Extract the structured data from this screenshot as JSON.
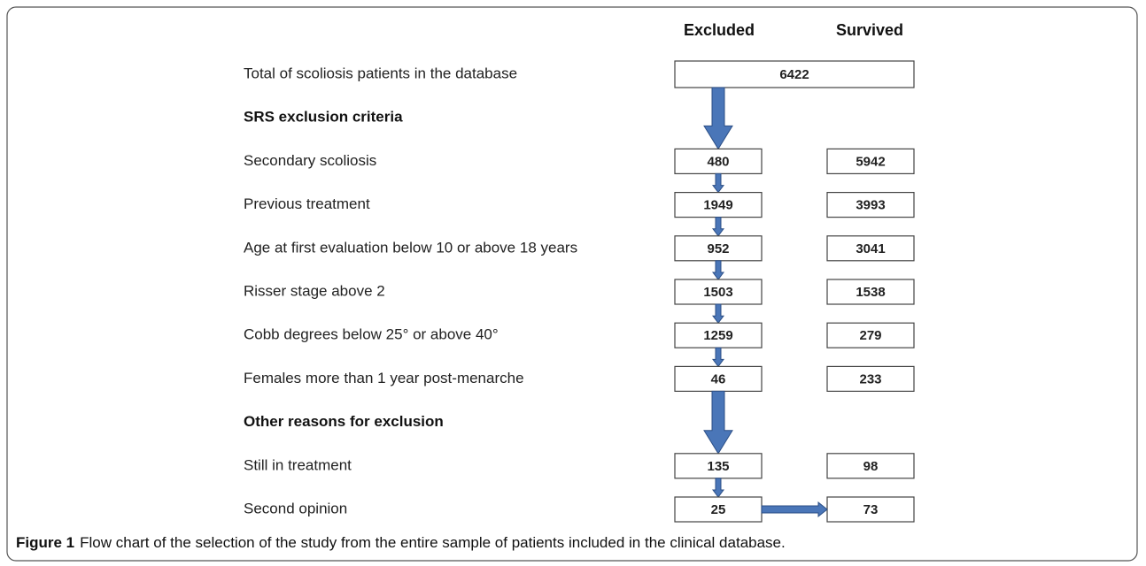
{
  "header": {
    "excluded": "Excluded",
    "survived": "Survived"
  },
  "total": {
    "label": "Total of scoliosis patients in the database",
    "value": 6422
  },
  "sections": [
    {
      "title": "SRS exclusion criteria",
      "rows": [
        {
          "label": "Secondary scoliosis",
          "excluded": 480,
          "survived": 5942
        },
        {
          "label": "Previous treatment",
          "excluded": 1949,
          "survived": 3993
        },
        {
          "label": "Age at first evaluation below 10 or above 18 years",
          "excluded": 952,
          "survived": 3041
        },
        {
          "label": "Risser stage above 2",
          "excluded": 1503,
          "survived": 1538
        },
        {
          "label": "Cobb degrees below 25° or above 40°",
          "excluded": 1259,
          "survived": 279
        },
        {
          "label": "Females more than 1 year post-menarche",
          "excluded": 46,
          "survived": 233
        }
      ]
    },
    {
      "title": "Other reasons for exclusion",
      "rows": [
        {
          "label": "Still in treatment",
          "excluded": 135,
          "survived": 98
        },
        {
          "label": "Second opinion",
          "excluded": 25,
          "survived": 73
        }
      ]
    }
  ],
  "caption": {
    "label": "Figure 1",
    "text": "Flow chart of the selection of the study from the entire sample of patients included in the clinical database."
  }
}
